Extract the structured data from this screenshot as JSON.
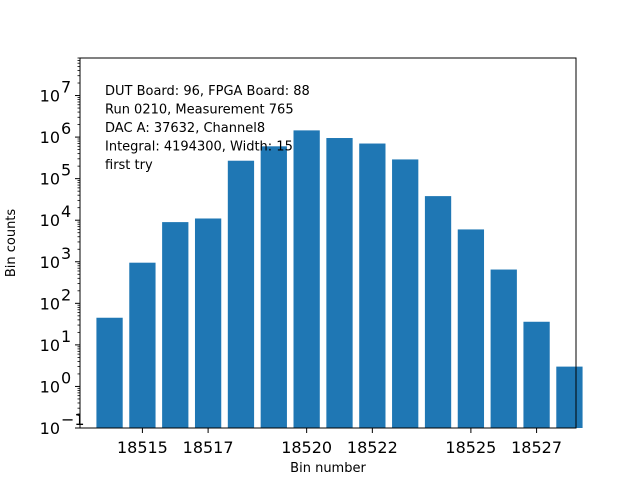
{
  "chart_data": {
    "type": "bar",
    "title": "",
    "xlabel": "Bin number",
    "ylabel": "Bin counts",
    "yscale": "log",
    "ylim": [
      0.1,
      80000000
    ],
    "xlim": [
      18513.1,
      18528.2
    ],
    "grid": false,
    "bar_color": "#1f77b4",
    "x": [
      18514,
      18515,
      18516,
      18517,
      18518,
      18519,
      18520,
      18521,
      18522,
      18523,
      18524,
      18525,
      18526,
      18527,
      18528
    ],
    "values": [
      45,
      950,
      9000,
      11000,
      270000,
      600000,
      1450000,
      950000,
      700000,
      290000,
      38000,
      6000,
      650,
      36,
      3
    ],
    "x_tick_values": [
      18515,
      18517,
      18520,
      18522,
      18525,
      18527
    ],
    "x_tick_labels": [
      "18515",
      "18517",
      "18520",
      "18522",
      "18525",
      "18527"
    ],
    "y_ticks": [
      {
        "value": 0.1,
        "base": "10",
        "exp": "−1"
      },
      {
        "value": 1,
        "base": "10",
        "exp": "0"
      },
      {
        "value": 10,
        "base": "10",
        "exp": "1"
      },
      {
        "value": 100,
        "base": "10",
        "exp": "2"
      },
      {
        "value": 1000,
        "base": "10",
        "exp": "3"
      },
      {
        "value": 10000,
        "base": "10",
        "exp": "4"
      },
      {
        "value": 100000,
        "base": "10",
        "exp": "5"
      },
      {
        "value": 1000000,
        "base": "10",
        "exp": "6"
      },
      {
        "value": 10000000,
        "base": "10",
        "exp": "7"
      }
    ],
    "annotations": [
      "DUT Board: 96, FPGA Board: 88",
      "Run 0210, Measurement 765",
      "DAC A: 37632, Channel8",
      "Integral: 4194300, Width: 15",
      "first try"
    ]
  }
}
